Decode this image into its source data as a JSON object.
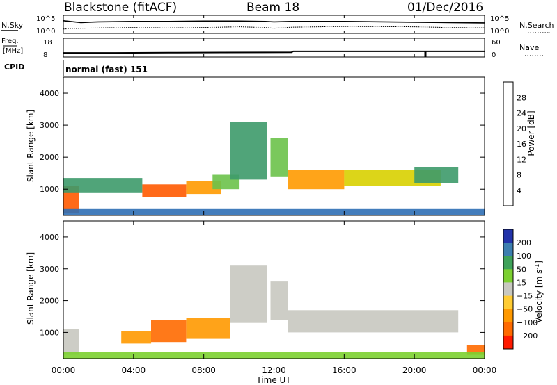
{
  "header": {
    "station": "Blackstone (fitACF)",
    "beam": "Beam 18",
    "date": "01/Dec/2016"
  },
  "noise_panel": {
    "left_label": "N.Sky",
    "right_label": "N.Search",
    "ticks_left": [
      "10^5",
      "10^0"
    ],
    "ticks_right": [
      "10^5",
      "10^0"
    ]
  },
  "freq_panel": {
    "left_label_1": "Freq.",
    "left_label_2": "[MHz]",
    "right_label": "Nave",
    "ticks_left": [
      "18",
      "8"
    ],
    "ticks_right": [
      "60",
      "0"
    ]
  },
  "cpid": {
    "label": "CPID",
    "value": "normal (fast) 151"
  },
  "axes": {
    "ylabel": "Slant Range [km]",
    "xlabel": "Time UT",
    "yticks": [
      "1000",
      "2000",
      "3000",
      "4000"
    ],
    "xticks": [
      "00:00",
      "04:00",
      "08:00",
      "12:00",
      "16:00",
      "20:00",
      "00:00"
    ]
  },
  "colorbars": {
    "power": {
      "label": "Power [dB]",
      "ticks": [
        "4",
        "8",
        "12",
        "16",
        "20",
        "24",
        "28"
      ],
      "colors": [
        "#1a1aff",
        "#2f6fb5",
        "#3d9a6a",
        "#6cc24a",
        "#d8d000",
        "#ff9a00",
        "#ff5a00",
        "#ff0000"
      ]
    },
    "velocity": {
      "label": "Velocity [m s",
      "label_sup": "-1",
      "label_end": "]",
      "ticks": [
        "200",
        "100",
        "50",
        "15",
        "−15",
        "−50",
        "−100",
        "−200"
      ],
      "colors": [
        "#2233aa",
        "#3d7fb0",
        "#3fa25a",
        "#7cd030",
        "#c8c8c0",
        "#ffcc33",
        "#ff9900",
        "#ff6a00",
        "#ff1a00"
      ]
    }
  },
  "chart_data": [
    {
      "type": "line",
      "title": "N.Sky / N.Search",
      "x_unit": "hours UT",
      "x": [
        0,
        1,
        2,
        4,
        6,
        8,
        10,
        11.5,
        12,
        13,
        16,
        20,
        22,
        24
      ],
      "series": [
        {
          "name": "N.Sky",
          "values": [
            3.5,
            3.0,
            3.2,
            3.3,
            3.3,
            3.4,
            3.4,
            3.3,
            3.2,
            3.3,
            3.3,
            3.1,
            3.0,
            2.9
          ]
        },
        {
          "name": "N.Search",
          "values": [
            1.2,
            1.4,
            1.5,
            1.6,
            1.5,
            1.6,
            1.8,
            1.6,
            1.4,
            1.7,
            1.9,
            1.8,
            1.6,
            1.5
          ]
        }
      ]
    },
    {
      "type": "line",
      "title": "Freq. / Nave",
      "x_unit": "hours UT",
      "x": [
        0,
        3,
        6,
        9,
        13,
        13.1,
        16,
        20.8,
        24
      ],
      "series": [
        {
          "name": "Freq.",
          "values": [
            10.2,
            10.2,
            10.3,
            10.4,
            10.5,
            11.0,
            11.0,
            11.0,
            11.0
          ]
        },
        {
          "name": "Nave",
          "values": [
            8,
            8,
            8,
            8,
            8,
            9,
            9,
            9,
            9
          ]
        }
      ]
    },
    {
      "type": "heatmap",
      "title": "Power",
      "x_unit": "hours UT",
      "y_unit": "km",
      "xlim": [
        0,
        24
      ],
      "ylim": [
        180,
        4500
      ],
      "bands": [
        {
          "t": [
            0.0,
            0.9
          ],
          "r": [
            250,
            1100
          ],
          "value": 24
        },
        {
          "t": [
            0.0,
            4.5
          ],
          "r": [
            900,
            1350
          ],
          "value": 8
        },
        {
          "t": [
            4.5,
            7.0
          ],
          "r": [
            750,
            1150
          ],
          "value": 26
        },
        {
          "t": [
            7.0,
            9.0
          ],
          "r": [
            850,
            1250
          ],
          "value": 20
        },
        {
          "t": [
            8.5,
            10.0
          ],
          "r": [
            1000,
            1450
          ],
          "value": 12
        },
        {
          "t": [
            9.5,
            11.6
          ],
          "r": [
            1300,
            3100
          ],
          "value": 8
        },
        {
          "t": [
            11.8,
            12.8
          ],
          "r": [
            1400,
            2600
          ],
          "value": 12
        },
        {
          "t": [
            12.8,
            16.0
          ],
          "r": [
            1000,
            1600
          ],
          "value": 20
        },
        {
          "t": [
            16.0,
            21.5
          ],
          "r": [
            1100,
            1600
          ],
          "value": 18
        },
        {
          "t": [
            20.0,
            22.5
          ],
          "r": [
            1200,
            1700
          ],
          "value": 10
        },
        {
          "t": [
            0.0,
            24.0
          ],
          "r": [
            180,
            380
          ],
          "value": 6
        }
      ]
    },
    {
      "type": "heatmap",
      "title": "Velocity",
      "x_unit": "hours UT",
      "y_unit": "km",
      "xlim": [
        0,
        24
      ],
      "ylim": [
        180,
        4500
      ],
      "bands": [
        {
          "t": [
            0.0,
            0.9
          ],
          "r": [
            300,
            1100
          ],
          "value": 0
        },
        {
          "t": [
            3.3,
            5.0
          ],
          "r": [
            650,
            1050
          ],
          "value": -60
        },
        {
          "t": [
            5.0,
            7.0
          ],
          "r": [
            700,
            1400
          ],
          "value": -100
        },
        {
          "t": [
            7.0,
            9.5
          ],
          "r": [
            800,
            1450
          ],
          "value": -80
        },
        {
          "t": [
            9.5,
            11.6
          ],
          "r": [
            1300,
            3100
          ],
          "value": 0
        },
        {
          "t": [
            11.8,
            12.8
          ],
          "r": [
            1400,
            2600
          ],
          "value": 0
        },
        {
          "t": [
            12.8,
            22.5
          ],
          "r": [
            1000,
            1700
          ],
          "value": 0
        },
        {
          "t": [
            23.0,
            24.0
          ],
          "r": [
            300,
            600
          ],
          "value": -100
        },
        {
          "t": [
            0.0,
            24.0
          ],
          "r": [
            180,
            380
          ],
          "value": 20
        }
      ]
    }
  ]
}
